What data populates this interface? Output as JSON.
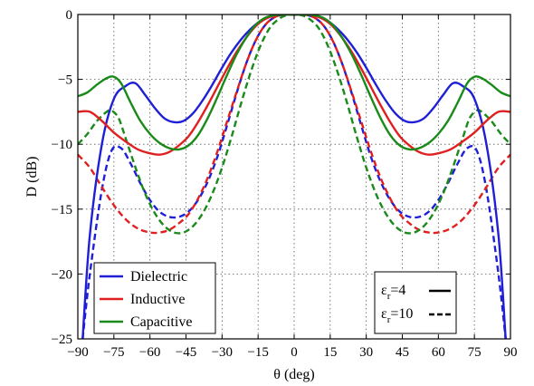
{
  "chart_data": {
    "type": "line",
    "xlabel": "θ (deg)",
    "ylabel": "D (dB)",
    "xlim": [
      -90,
      90
    ],
    "ylim": [
      -25,
      0
    ],
    "xticks": [
      -90,
      -75,
      -60,
      -45,
      -30,
      -15,
      0,
      15,
      30,
      45,
      60,
      75,
      90
    ],
    "xtick_labels": [
      "−90",
      "−75",
      "−60",
      "−45",
      "−30",
      "−15",
      "0",
      "15",
      "30",
      "45",
      "60",
      "75",
      "90"
    ],
    "yticks": [
      0,
      -5,
      -10,
      -15,
      -20,
      -25
    ],
    "ytick_labels": [
      "0",
      "−5",
      "−10",
      "−15",
      "−20",
      "−25"
    ],
    "grid": true,
    "legend_placement": "bottom-left",
    "legend": [
      {
        "name": "Dielectric",
        "color": "#1f1fd6"
      },
      {
        "name": "Inductive",
        "color": "#e02020"
      },
      {
        "name": "Capacitive",
        "color": "#1a8a1a"
      }
    ],
    "style_legend": {
      "placement": "bottom-right",
      "entries": [
        {
          "symbol": "ε",
          "sub": "r",
          "value": "=4",
          "dash": "solid"
        },
        {
          "symbol": "ε",
          "sub": "r",
          "value": "=10",
          "dash": "dashed"
        }
      ]
    },
    "series": [
      {
        "material": "Dielectric",
        "eps": 4,
        "dash": "solid",
        "color": "#1f1fd6",
        "x": [
          -88,
          -85,
          -80,
          -75,
          -70,
          -66,
          -62,
          -58,
          -54,
          -50,
          -46,
          -42,
          -38,
          -34,
          -30,
          -26,
          -22,
          -18,
          -14,
          -10,
          -6,
          -3,
          0,
          3,
          6,
          10,
          14,
          18,
          22,
          26,
          30,
          34,
          38,
          42,
          46,
          50,
          54,
          58,
          62,
          66,
          70,
          75,
          80,
          85,
          88
        ],
        "y": [
          -25,
          -17,
          -10,
          -6.5,
          -5.5,
          -5.3,
          -6.2,
          -7.2,
          -8.0,
          -8.3,
          -8.2,
          -7.6,
          -6.6,
          -5.4,
          -4.1,
          -2.9,
          -1.9,
          -1.1,
          -0.5,
          -0.15,
          -0.02,
          0,
          0,
          0,
          -0.02,
          -0.15,
          -0.5,
          -1.1,
          -1.9,
          -2.9,
          -4.1,
          -5.4,
          -6.6,
          -7.6,
          -8.2,
          -8.3,
          -8.0,
          -7.2,
          -6.2,
          -5.3,
          -5.5,
          -6.5,
          -10,
          -17,
          -25
        ]
      },
      {
        "material": "Dielectric",
        "eps": 10,
        "dash": "dashed",
        "color": "#1f1fd6",
        "x": [
          -88,
          -85,
          -80,
          -76,
          -72,
          -68,
          -64,
          -60,
          -56,
          -52,
          -48,
          -44,
          -40,
          -36,
          -32,
          -28,
          -24,
          -20,
          -16,
          -12,
          -8,
          -4,
          0,
          4,
          8,
          12,
          16,
          20,
          24,
          28,
          32,
          36,
          40,
          44,
          48,
          52,
          56,
          60,
          64,
          68,
          72,
          76,
          80,
          85,
          88
        ],
        "y": [
          -25,
          -20,
          -13.5,
          -10.5,
          -10.3,
          -11.5,
          -13.0,
          -14.3,
          -15.2,
          -15.6,
          -15.6,
          -15.2,
          -14.3,
          -12.9,
          -11.0,
          -8.6,
          -6.1,
          -3.8,
          -2.0,
          -0.8,
          -0.2,
          0,
          0,
          0,
          -0.2,
          -0.8,
          -2.0,
          -3.8,
          -6.1,
          -8.6,
          -11.0,
          -12.9,
          -14.3,
          -15.2,
          -15.6,
          -15.6,
          -15.2,
          -14.3,
          -13.0,
          -11.5,
          -10.3,
          -10.5,
          -13.5,
          -20,
          -25
        ]
      },
      {
        "material": "Inductive",
        "eps": 4,
        "dash": "solid",
        "color": "#e02020",
        "x": [
          -90,
          -85,
          -80,
          -75,
          -70,
          -65,
          -60,
          -56,
          -52,
          -48,
          -44,
          -40,
          -36,
          -32,
          -28,
          -24,
          -20,
          -16,
          -12,
          -8,
          -4,
          0,
          4,
          8,
          12,
          16,
          20,
          24,
          28,
          32,
          36,
          40,
          44,
          48,
          52,
          56,
          60,
          65,
          70,
          75,
          80,
          85,
          90
        ],
        "y": [
          -7.5,
          -7.5,
          -8.2,
          -9.1,
          -9.8,
          -10.4,
          -10.7,
          -10.8,
          -10.6,
          -10.1,
          -9.4,
          -8.3,
          -7.0,
          -5.6,
          -4.2,
          -2.9,
          -1.8,
          -0.9,
          -0.35,
          -0.08,
          0,
          0,
          0,
          -0.08,
          -0.35,
          -0.9,
          -1.8,
          -2.9,
          -4.2,
          -5.6,
          -7.0,
          -8.3,
          -9.4,
          -10.1,
          -10.6,
          -10.8,
          -10.7,
          -10.4,
          -9.8,
          -9.1,
          -8.2,
          -7.5,
          -7.5
        ]
      },
      {
        "material": "Inductive",
        "eps": 10,
        "dash": "dashed",
        "color": "#e02020",
        "x": [
          -90,
          -85,
          -80,
          -75,
          -70,
          -65,
          -60,
          -56,
          -52,
          -48,
          -44,
          -40,
          -36,
          -32,
          -28,
          -24,
          -20,
          -16,
          -12,
          -8,
          -4,
          0,
          4,
          8,
          12,
          16,
          20,
          24,
          28,
          32,
          36,
          40,
          44,
          48,
          52,
          56,
          60,
          65,
          70,
          75,
          80,
          85,
          90
        ],
        "y": [
          -10.8,
          -11.8,
          -13.3,
          -14.7,
          -15.8,
          -16.5,
          -16.8,
          -16.8,
          -16.6,
          -16.1,
          -15.4,
          -14.2,
          -12.6,
          -10.6,
          -8.3,
          -6.0,
          -3.8,
          -2.0,
          -0.8,
          -0.2,
          0,
          0,
          0,
          -0.2,
          -0.8,
          -2.0,
          -3.8,
          -6.0,
          -8.3,
          -10.6,
          -12.6,
          -14.2,
          -15.4,
          -16.1,
          -16.6,
          -16.8,
          -16.8,
          -16.5,
          -15.8,
          -14.7,
          -13.3,
          -11.8,
          -10.8
        ]
      },
      {
        "material": "Capacitive",
        "eps": 4,
        "dash": "solid",
        "color": "#1a8a1a",
        "x": [
          -90,
          -86,
          -82,
          -78,
          -75,
          -72,
          -68,
          -64,
          -60,
          -56,
          -52,
          -48,
          -44,
          -40,
          -36,
          -32,
          -28,
          -24,
          -20,
          -16,
          -12,
          -8,
          -4,
          0,
          4,
          8,
          12,
          16,
          20,
          24,
          28,
          32,
          36,
          40,
          44,
          48,
          52,
          56,
          60,
          64,
          68,
          72,
          75,
          78,
          82,
          86,
          90
        ],
        "y": [
          -6.3,
          -6.0,
          -5.4,
          -4.9,
          -4.8,
          -5.3,
          -6.8,
          -8.2,
          -9.2,
          -9.9,
          -10.3,
          -10.4,
          -10.1,
          -9.3,
          -8.0,
          -6.4,
          -4.7,
          -3.1,
          -1.8,
          -0.8,
          -0.25,
          -0.05,
          0,
          0,
          0,
          -0.05,
          -0.25,
          -0.8,
          -1.8,
          -3.1,
          -4.7,
          -6.4,
          -8.0,
          -9.3,
          -10.1,
          -10.4,
          -10.3,
          -9.9,
          -9.2,
          -8.2,
          -6.8,
          -5.3,
          -4.8,
          -4.9,
          -5.4,
          -6.0,
          -6.3
        ]
      },
      {
        "material": "Capacitive",
        "eps": 10,
        "dash": "dashed",
        "color": "#1a8a1a",
        "x": [
          -90,
          -86,
          -82,
          -78,
          -76,
          -73,
          -70,
          -66,
          -62,
          -58,
          -54,
          -50,
          -46,
          -42,
          -38,
          -34,
          -30,
          -26,
          -22,
          -18,
          -14,
          -10,
          -6,
          -3,
          0,
          3,
          6,
          10,
          14,
          18,
          22,
          26,
          30,
          34,
          38,
          42,
          46,
          50,
          54,
          58,
          62,
          66,
          70,
          73,
          76,
          78,
          82,
          86,
          90
        ],
        "y": [
          -10.0,
          -9.2,
          -8.2,
          -7.5,
          -7.4,
          -8.0,
          -9.6,
          -11.8,
          -13.8,
          -15.3,
          -16.3,
          -16.8,
          -16.8,
          -16.3,
          -15.3,
          -13.8,
          -11.8,
          -9.4,
          -6.8,
          -4.4,
          -2.4,
          -1.0,
          -0.3,
          -0.05,
          0,
          -0.05,
          -0.3,
          -1.0,
          -2.4,
          -4.4,
          -6.8,
          -9.4,
          -11.8,
          -13.8,
          -15.3,
          -16.3,
          -16.8,
          -16.8,
          -16.3,
          -15.3,
          -13.8,
          -11.8,
          -9.6,
          -8.0,
          -7.4,
          -7.5,
          -8.2,
          -9.2,
          -10.0
        ]
      }
    ]
  }
}
